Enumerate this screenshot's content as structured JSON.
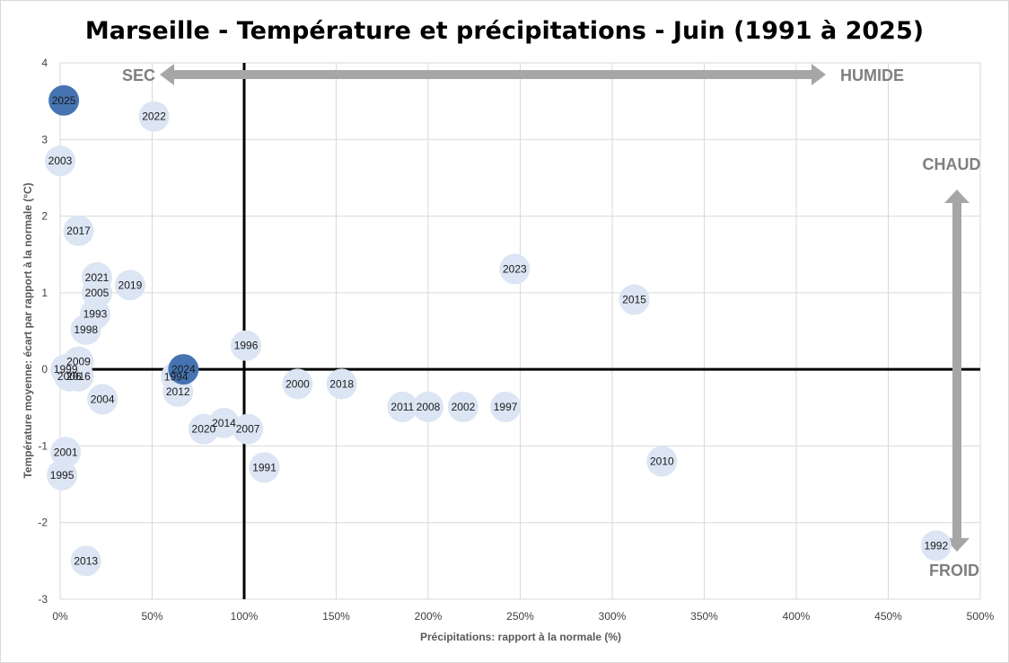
{
  "chart_data": {
    "type": "scatter",
    "title": "Marseille - Température et précipitations - Juin (1991 à 2025)",
    "xlabel": "Précipitations: rapport à la normale (%)",
    "ylabel": "Température moyenne: écart par rapport à la normale (°C)",
    "xlim": [
      0,
      500
    ],
    "ylim": [
      -3,
      4
    ],
    "x_ticks": [
      "0%",
      "50%",
      "100%",
      "150%",
      "200%",
      "250%",
      "300%",
      "350%",
      "400%",
      "450%",
      "500%"
    ],
    "y_ticks": [
      "4",
      "3",
      "2",
      "1",
      "0",
      "-1",
      "-2",
      "-3"
    ],
    "grid": true,
    "colors": {
      "point": "#dbe5f3",
      "highlight": "#4674b2",
      "arrow": "#a6a6a6",
      "crosshair": "#000000"
    },
    "annotations": {
      "sec": "SEC",
      "humide": "HUMIDE",
      "chaud": "CHAUD",
      "froid": "FROID"
    },
    "points": [
      {
        "label": "1991",
        "x": 111,
        "y": -1.28,
        "highlight": false
      },
      {
        "label": "1992",
        "x": 476,
        "y": -2.3,
        "highlight": false
      },
      {
        "label": "1993",
        "x": 19,
        "y": 0.72,
        "highlight": false
      },
      {
        "label": "1994",
        "x": 63,
        "y": -0.1,
        "highlight": false
      },
      {
        "label": "1995",
        "x": 1,
        "y": -1.38,
        "highlight": false
      },
      {
        "label": "1996",
        "x": 101,
        "y": 0.31,
        "highlight": false
      },
      {
        "label": "1997",
        "x": 242,
        "y": -0.49,
        "highlight": false
      },
      {
        "label": "1998",
        "x": 14,
        "y": 0.52,
        "highlight": false
      },
      {
        "label": "1999",
        "x": 3,
        "y": 0.0,
        "highlight": false
      },
      {
        "label": "2000",
        "x": 129,
        "y": -0.19,
        "highlight": false
      },
      {
        "label": "2001",
        "x": 3,
        "y": -1.08,
        "highlight": false
      },
      {
        "label": "2002",
        "x": 219,
        "y": -0.49,
        "highlight": false
      },
      {
        "label": "2003",
        "x": 0,
        "y": 2.72,
        "highlight": false
      },
      {
        "label": "2004",
        "x": 23,
        "y": -0.39,
        "highlight": false
      },
      {
        "label": "2005",
        "x": 20,
        "y": 1.0,
        "highlight": false
      },
      {
        "label": "2006",
        "x": 5,
        "y": -0.09,
        "highlight": false
      },
      {
        "label": "2007",
        "x": 102,
        "y": -0.78,
        "highlight": false
      },
      {
        "label": "2008",
        "x": 200,
        "y": -0.49,
        "highlight": false
      },
      {
        "label": "2009",
        "x": 10,
        "y": 0.1,
        "highlight": false
      },
      {
        "label": "2010",
        "x": 327,
        "y": -1.2,
        "highlight": false
      },
      {
        "label": "2011",
        "x": 186,
        "y": -0.49,
        "highlight": false
      },
      {
        "label": "2012",
        "x": 64,
        "y": -0.29,
        "highlight": false
      },
      {
        "label": "2013",
        "x": 14,
        "y": -2.5,
        "highlight": false
      },
      {
        "label": "2014",
        "x": 89,
        "y": -0.7,
        "highlight": false
      },
      {
        "label": "2015",
        "x": 312,
        "y": 0.91,
        "highlight": false
      },
      {
        "label": "2016",
        "x": 10,
        "y": -0.09,
        "highlight": false
      },
      {
        "label": "2017",
        "x": 10,
        "y": 1.81,
        "highlight": false
      },
      {
        "label": "2018",
        "x": 153,
        "y": -0.19,
        "highlight": false
      },
      {
        "label": "2019",
        "x": 38,
        "y": 1.1,
        "highlight": false
      },
      {
        "label": "2020",
        "x": 78,
        "y": -0.78,
        "highlight": false
      },
      {
        "label": "2021",
        "x": 20,
        "y": 1.2,
        "highlight": false
      },
      {
        "label": "2022",
        "x": 51,
        "y": 3.3,
        "highlight": false
      },
      {
        "label": "2023",
        "x": 247,
        "y": 1.31,
        "highlight": false
      },
      {
        "label": "2024",
        "x": 67,
        "y": 0.0,
        "highlight": true
      },
      {
        "label": "2025",
        "x": 2,
        "y": 3.51,
        "highlight": true
      }
    ]
  }
}
